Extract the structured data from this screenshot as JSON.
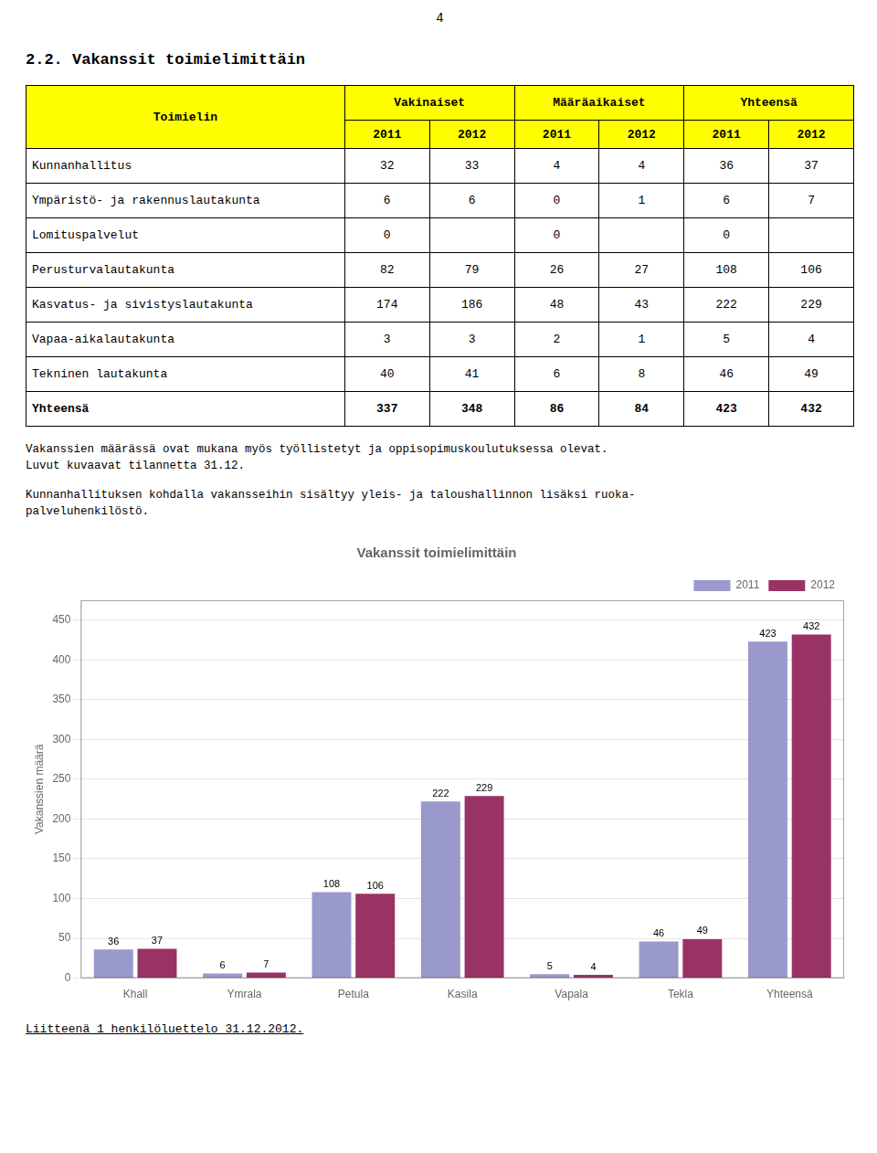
{
  "page_number": "4",
  "section_title": "2.2. Vakanssit toimielimittäin",
  "table": {
    "columns": [
      "Toimielin",
      "Vakinaiset",
      "Määräaikaiset",
      "Yhteensä"
    ],
    "subcolumns": [
      "2011",
      "2012",
      "2011",
      "2012",
      "2011",
      "2012"
    ],
    "rows": [
      [
        "Kunnanhallitus",
        "32",
        "33",
        "4",
        "4",
        "36",
        "37"
      ],
      [
        "Ympäristö- ja rakennuslautakunta",
        "6",
        "6",
        "0",
        "1",
        "6",
        "7"
      ],
      [
        "Lomituspalvelut",
        "0",
        null,
        "0",
        null,
        "0",
        null
      ],
      [
        "Perusturvalautakunta",
        "82",
        "79",
        "26",
        "27",
        "108",
        "106"
      ],
      [
        "Kasvatus- ja sivistyslautakunta",
        "174",
        "186",
        "48",
        "43",
        "222",
        "229"
      ],
      [
        "Vapaa-aikalautakunta",
        "3",
        "3",
        "2",
        "1",
        "5",
        "4"
      ],
      [
        "Tekninen lautakunta",
        "40",
        "41",
        "6",
        "8",
        "46",
        "49"
      ],
      [
        "Yhteensä",
        "337",
        "348",
        "86",
        "84",
        "423",
        "432"
      ]
    ]
  },
  "notes": [
    [
      "Vakanssien määrässä ovat mukana myös työllistetyt ja oppisopimuskoulutuksessa olevat.",
      "Luvut kuvaavat tilannetta 31.12."
    ],
    [
      "Kunnanhallituksen kohdalla vakansseihin sisältyy yleis- ja taloushallinnon lisäksi ruoka-",
      "palveluhenkilöstö."
    ]
  ],
  "footer": "Liitteenä 1 henkilöluettelo 31.12.2012.",
  "chart_data": {
    "type": "bar",
    "title": "Vakanssit toimielimittäin",
    "categories": [
      "Khall",
      "Ymrala",
      "Petula",
      "Kasila",
      "Vapala",
      "Tekla",
      "Yhteensä"
    ],
    "series": [
      {
        "name": "2011",
        "color": "#9999CC",
        "values": [
          36,
          6,
          108,
          222,
          5,
          46,
          423
        ]
      },
      {
        "name": "2012",
        "color": "#993366",
        "values": [
          37,
          7,
          106,
          229,
          4,
          49,
          432
        ]
      }
    ],
    "ylabel": "Vakanssien määrä",
    "ylim": [
      0,
      475
    ],
    "yticks": [
      0,
      50,
      100,
      150,
      200,
      250,
      300,
      350,
      400,
      450
    ],
    "grid": true,
    "legend": "upper right",
    "data_labels": true
  }
}
